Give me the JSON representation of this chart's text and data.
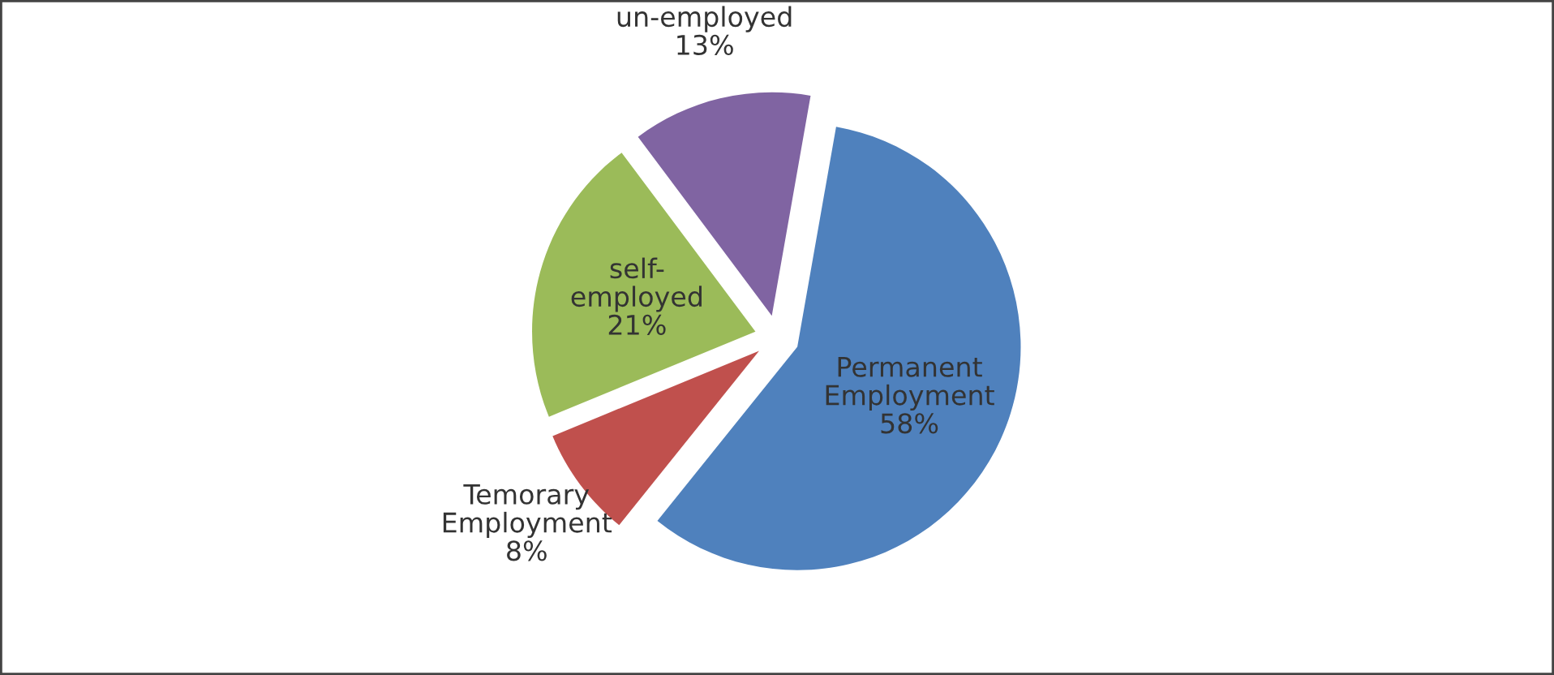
{
  "chart_data": {
    "type": "pie",
    "categories": [
      "Permanent\nEmployment",
      "Temorary\nEmployment",
      "self-\nemployed",
      "un-employed"
    ],
    "values": [
      58,
      8,
      21,
      13
    ],
    "value_labels": [
      "58%",
      "8%",
      "21%",
      "13%"
    ],
    "colors": [
      "#4f81bd",
      "#c0504d",
      "#9bbb59",
      "#8064a2"
    ],
    "legend": false
  }
}
